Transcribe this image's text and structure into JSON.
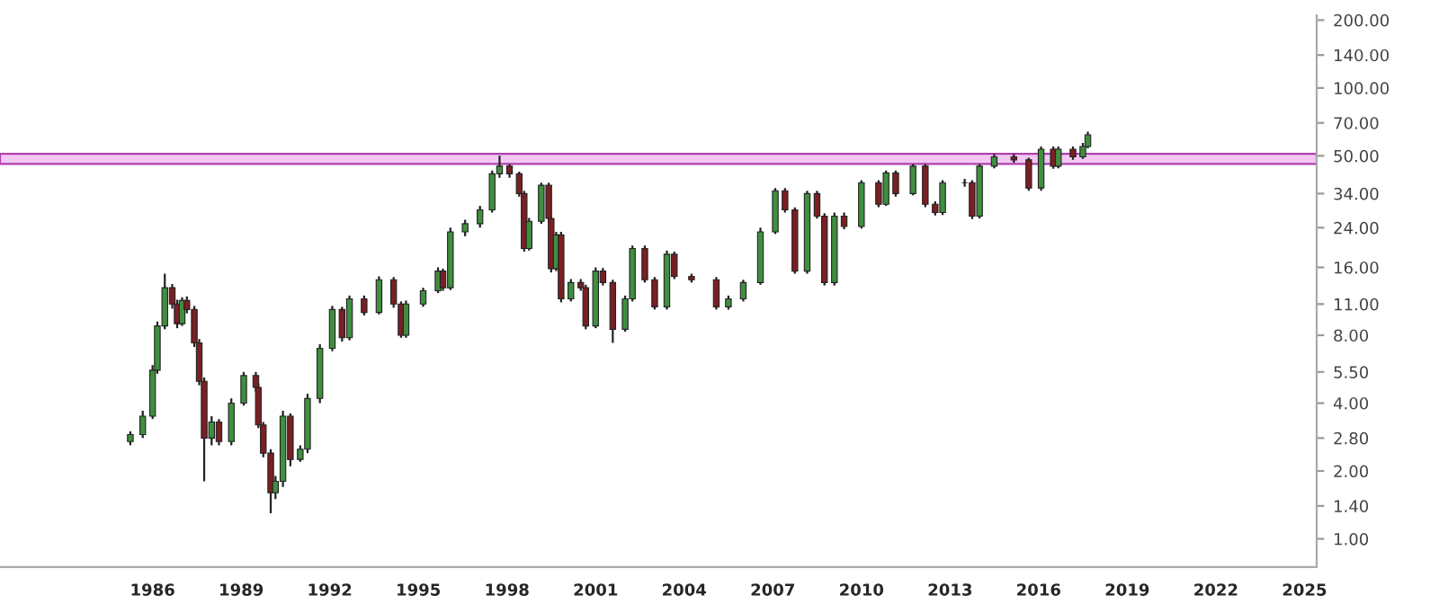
{
  "chart_data": {
    "type": "candlestick",
    "x": [
      "1985-04",
      "1985-09",
      "1986-01",
      "1986-03",
      "1986-06",
      "1986-09",
      "1986-11",
      "1987-01",
      "1987-03",
      "1987-06",
      "1987-08",
      "1987-10",
      "1988-01",
      "1988-04",
      "1988-09",
      "1989-02",
      "1989-07",
      "1989-08",
      "1989-10",
      "1990-01",
      "1990-03",
      "1990-06",
      "1990-09",
      "1991-01",
      "1991-04",
      "1991-09",
      "1992-02",
      "1992-06",
      "1992-09",
      "1993-03",
      "1993-09",
      "1994-03",
      "1994-06",
      "1994-08",
      "1995-03",
      "1995-09",
      "1995-11",
      "1996-02",
      "1996-08",
      "1997-02",
      "1997-07",
      "1997-10",
      "1998-02",
      "1998-06",
      "1998-08",
      "1998-10",
      "1999-03",
      "1999-06",
      "1999-07",
      "1999-09",
      "1999-11",
      "2000-03",
      "2000-07",
      "2000-09",
      "2001-01",
      "2001-04",
      "2001-08",
      "2002-01",
      "2002-04",
      "2002-09",
      "2003-01",
      "2003-06",
      "2003-09",
      "2004-04",
      "2005-02",
      "2005-07",
      "2006-01",
      "2006-08",
      "2007-02",
      "2007-06",
      "2007-10",
      "2008-03",
      "2008-07",
      "2008-10",
      "2009-02",
      "2009-06",
      "2010-01",
      "2010-08",
      "2010-11",
      "2011-03",
      "2011-10",
      "2012-03",
      "2012-07",
      "2012-10",
      "2013-07",
      "2013-10",
      "2014-01",
      "2014-07",
      "2015-03",
      "2015-09",
      "2016-02",
      "2016-07",
      "2016-09",
      "2017-03",
      "2017-07",
      "2017-09"
    ],
    "ohlc": [
      [
        2.7,
        3.0,
        2.6,
        2.9
      ],
      [
        2.9,
        3.7,
        2.8,
        3.5
      ],
      [
        3.5,
        5.9,
        3.4,
        5.6
      ],
      [
        5.6,
        9.2,
        5.4,
        8.8
      ],
      [
        8.8,
        15,
        8.5,
        13
      ],
      [
        13,
        13.5,
        10.5,
        11
      ],
      [
        11,
        11.5,
        8.6,
        9
      ],
      [
        9,
        11.8,
        8.8,
        11.4
      ],
      [
        11.4,
        11.9,
        10,
        10.4
      ],
      [
        10.4,
        10.8,
        7.1,
        7.4
      ],
      [
        7.4,
        7.7,
        4.8,
        5
      ],
      [
        5,
        5.2,
        1.8,
        2.8
      ],
      [
        2.8,
        3.5,
        2.6,
        3.3
      ],
      [
        3.3,
        3.4,
        2.6,
        2.7
      ],
      [
        2.7,
        4.2,
        2.6,
        4.0
      ],
      [
        4.0,
        5.5,
        3.9,
        5.3
      ],
      [
        5.3,
        5.5,
        4.5,
        4.7
      ],
      [
        4.7,
        4.9,
        3.1,
        3.2
      ],
      [
        3.2,
        3.3,
        2.3,
        2.4
      ],
      [
        2.4,
        2.5,
        1.3,
        1.6
      ],
      [
        1.6,
        1.9,
        1.5,
        1.8
      ],
      [
        1.8,
        3.7,
        1.7,
        3.5
      ],
      [
        3.5,
        3.6,
        2.1,
        2.25
      ],
      [
        2.25,
        2.6,
        2.2,
        2.5
      ],
      [
        2.5,
        4.4,
        2.4,
        4.2
      ],
      [
        4.2,
        7.3,
        4.0,
        7
      ],
      [
        7,
        10.8,
        6.8,
        10.4
      ],
      [
        10.4,
        10.7,
        7.5,
        7.8
      ],
      [
        7.8,
        12,
        7.6,
        11.6
      ],
      [
        11.6,
        12,
        9.8,
        10.1
      ],
      [
        10.1,
        14.6,
        9.9,
        14.1
      ],
      [
        14.1,
        14.5,
        10.6,
        11
      ],
      [
        11,
        11.3,
        7.8,
        8.0
      ],
      [
        8.0,
        11.4,
        7.8,
        11
      ],
      [
        11,
        13,
        10.7,
        12.6
      ],
      [
        12.6,
        16,
        12.3,
        15.4
      ],
      [
        15.4,
        15.8,
        12.6,
        13
      ],
      [
        13,
        24,
        12.7,
        23
      ],
      [
        23,
        26,
        22,
        25
      ],
      [
        25,
        30,
        24,
        28.8
      ],
      [
        28.8,
        43,
        28,
        41.6
      ],
      [
        41.6,
        50,
        40,
        45
      ],
      [
        45,
        46,
        40,
        41.6
      ],
      [
        41.6,
        42.5,
        33,
        34
      ],
      [
        34,
        35,
        18.8,
        19.4
      ],
      [
        19.4,
        26.5,
        19,
        25.6
      ],
      [
        25.6,
        38,
        25,
        37
      ],
      [
        37,
        38,
        25.5,
        26.4
      ],
      [
        26.4,
        27,
        15.2,
        15.8
      ],
      [
        15.8,
        23,
        15.4,
        22.3
      ],
      [
        22.3,
        23,
        11.2,
        11.6
      ],
      [
        11.6,
        14.2,
        11.3,
        13.7
      ],
      [
        13.7,
        14.2,
        12.6,
        13
      ],
      [
        13,
        13.4,
        8.5,
        8.8
      ],
      [
        8.8,
        16,
        8.6,
        15.4
      ],
      [
        15.4,
        15.9,
        13.3,
        13.7
      ],
      [
        13.7,
        14.1,
        7.4,
        8.5
      ],
      [
        8.5,
        12,
        8.3,
        11.6
      ],
      [
        11.6,
        20,
        11.3,
        19.4
      ],
      [
        19.4,
        20,
        13.7,
        14.1
      ],
      [
        14.1,
        14.5,
        10.4,
        10.7
      ],
      [
        10.7,
        19,
        10.4,
        18.3
      ],
      [
        18.3,
        18.8,
        14.2,
        14.6
      ],
      [
        14.6,
        15,
        13.7,
        14.1
      ],
      [
        14.1,
        14.5,
        10.4,
        10.7
      ],
      [
        10.7,
        12,
        10.4,
        11.6
      ],
      [
        11.6,
        14.1,
        11.3,
        13.7
      ],
      [
        13.7,
        24,
        13.4,
        23
      ],
      [
        23,
        36,
        22.5,
        35
      ],
      [
        35,
        36,
        28,
        28.8
      ],
      [
        28.8,
        29.5,
        15,
        15.4
      ],
      [
        15.4,
        35,
        15,
        34
      ],
      [
        34,
        35,
        26.3,
        27
      ],
      [
        27,
        27.8,
        13.3,
        13.7
      ],
      [
        13.7,
        28,
        13.3,
        27
      ],
      [
        27,
        28,
        23.6,
        24.3
      ],
      [
        24.3,
        39,
        23.8,
        38
      ],
      [
        38,
        39,
        29.6,
        30.5
      ],
      [
        30.5,
        43,
        30,
        42
      ],
      [
        42,
        43,
        33,
        34
      ],
      [
        34,
        46,
        33.4,
        45
      ],
      [
        45,
        46,
        29.6,
        30.5
      ],
      [
        30.5,
        31.4,
        27.2,
        28
      ],
      [
        28,
        39,
        27.3,
        38
      ],
      [
        38,
        39.5,
        36.5,
        38
      ],
      [
        38,
        39,
        26.2,
        27
      ],
      [
        27,
        46,
        26.4,
        45
      ],
      [
        45,
        51,
        44,
        49.5
      ],
      [
        49.5,
        51,
        46.6,
        48
      ],
      [
        48,
        49,
        35,
        36
      ],
      [
        36,
        55,
        35,
        53.5
      ],
      [
        53.5,
        55,
        43.8,
        45
      ],
      [
        45,
        55,
        44,
        53.5
      ],
      [
        53.5,
        55,
        48,
        49.5
      ],
      [
        49.5,
        57,
        48.5,
        55
      ],
      [
        55,
        64,
        54,
        62
      ]
    ],
    "xlim": [
      "1980-11",
      "2025-06"
    ],
    "xticks": [
      "1986",
      "1989",
      "1992",
      "1995",
      "1998",
      "2001",
      "2004",
      "2007",
      "2010",
      "2013",
      "2016",
      "2019",
      "2022",
      "2025"
    ],
    "log": "y",
    "ylim": [
      0.75,
      210
    ],
    "yticks": [
      {
        "value": 1,
        "label": "1.00"
      },
      {
        "value": 1.4,
        "label": "1.40"
      },
      {
        "value": 2,
        "label": "2.00"
      },
      {
        "value": 2.8,
        "label": "2.80"
      },
      {
        "value": 4,
        "label": "4.00"
      },
      {
        "value": 5.5,
        "label": "5.50"
      },
      {
        "value": 8,
        "label": "8.00"
      },
      {
        "value": 11,
        "label": "11.00"
      },
      {
        "value": 16,
        "label": "16.00"
      },
      {
        "value": 24,
        "label": "24.00"
      },
      {
        "value": 34,
        "label": "34.00"
      },
      {
        "value": 50,
        "label": "50.00"
      },
      {
        "value": 70,
        "label": "70.00"
      },
      {
        "value": 100,
        "label": "100.00"
      },
      {
        "value": 140,
        "label": "140.00"
      },
      {
        "value": 200,
        "label": "200.00"
      }
    ],
    "bands": [
      {
        "axis": "y",
        "from": 46,
        "to": 51,
        "color": "#f3c8f3"
      }
    ],
    "grid": false
  }
}
